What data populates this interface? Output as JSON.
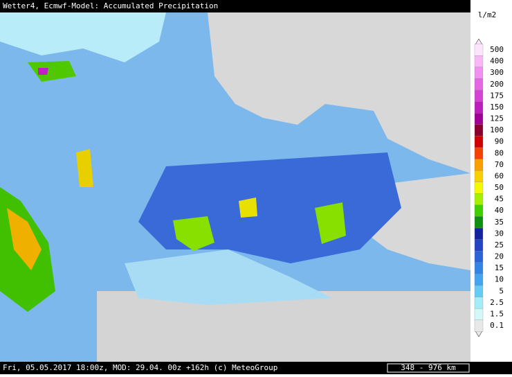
{
  "header": {
    "title": "Wetter4, Ecmwf-Model: Accumulated Precipitation"
  },
  "legend": {
    "unit": "l/m2",
    "items": [
      {
        "label": "500",
        "color": "#fce4fc"
      },
      {
        "label": "400",
        "color": "#f8b8f8"
      },
      {
        "label": "300",
        "color": "#f090f0"
      },
      {
        "label": "200",
        "color": "#e468e4"
      },
      {
        "label": "175",
        "color": "#d444d4"
      },
      {
        "label": "150",
        "color": "#bc20bc"
      },
      {
        "label": "125",
        "color": "#a00094"
      },
      {
        "label": "100",
        "color": "#8c0030"
      },
      {
        "label": "90",
        "color": "#d00000"
      },
      {
        "label": "80",
        "color": "#f04400"
      },
      {
        "label": "70",
        "color": "#f8a000"
      },
      {
        "label": "60",
        "color": "#f8d000"
      },
      {
        "label": "50",
        "color": "#f4f800"
      },
      {
        "label": "45",
        "color": "#a4f000"
      },
      {
        "label": "40",
        "color": "#40d000"
      },
      {
        "label": "35",
        "color": "#109010"
      },
      {
        "label": "30",
        "color": "#1424a0"
      },
      {
        "label": "25",
        "color": "#2444c4"
      },
      {
        "label": "20",
        "color": "#2c64d8"
      },
      {
        "label": "15",
        "color": "#3484e4"
      },
      {
        "label": "10",
        "color": "#44a4f0"
      },
      {
        "label": "5",
        "color": "#64ccf4"
      },
      {
        "label": "2.5",
        "color": "#a4ecf8"
      },
      {
        "label": "1.5",
        "color": "#d4f8f8"
      },
      {
        "label": "0.1",
        "color": "#e8e8e8"
      }
    ]
  },
  "footer": {
    "info": "Fri, 05.05.2017 18:00z, MOD: 29.04. 00z +162h (c) MeteoGroup",
    "scale": "348 - 976 km"
  }
}
